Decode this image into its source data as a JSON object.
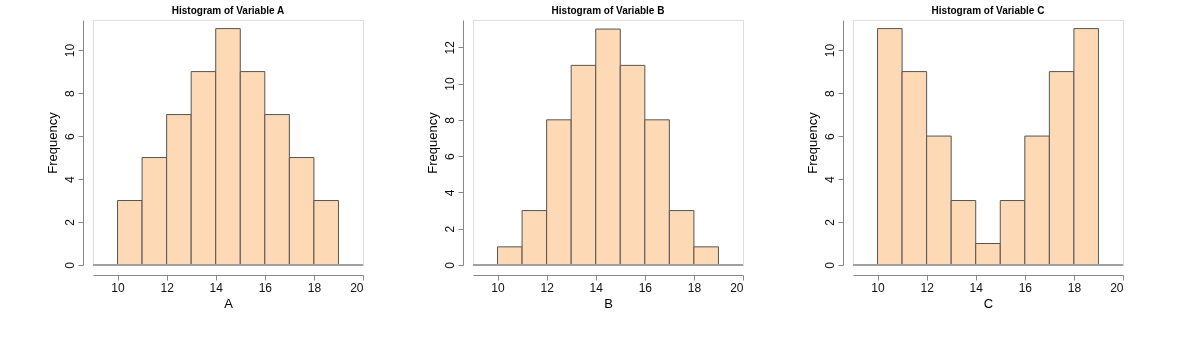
{
  "chart_data": [
    {
      "type": "histogram",
      "title": "Histogram of Variable A",
      "xlabel": "A",
      "ylabel": "Frequency",
      "bins": [
        10,
        11,
        12,
        13,
        14,
        15,
        16,
        17,
        18,
        19
      ],
      "values": [
        3,
        5,
        7,
        9,
        11,
        9,
        7,
        5,
        3
      ],
      "color": "#fdd9b5",
      "xlim": [
        9,
        20
      ],
      "xticks": [
        10,
        12,
        14,
        16,
        18,
        20
      ],
      "ylim": [
        0,
        11.4
      ],
      "yticks": [
        0,
        2,
        4,
        6,
        8,
        10
      ],
      "grid": false,
      "ref_lines": [
        {
          "axis": "y",
          "value": 0,
          "color": "#a0a0a0"
        }
      ]
    },
    {
      "type": "histogram",
      "title": "Histogram of Variable B",
      "xlabel": "B",
      "ylabel": "Frequency",
      "bins": [
        10,
        11,
        12,
        13,
        14,
        15,
        16,
        17,
        18,
        19
      ],
      "values": [
        1,
        3,
        8,
        11,
        13,
        11,
        8,
        3,
        1
      ],
      "color": "#fdd9b5",
      "xlim": [
        9,
        20
      ],
      "xticks": [
        10,
        12,
        14,
        16,
        18,
        20
      ],
      "ylim": [
        0,
        13.5
      ],
      "yticks": [
        0,
        2,
        4,
        6,
        8,
        10,
        12
      ],
      "grid": false,
      "ref_lines": [
        {
          "axis": "y",
          "value": 0,
          "color": "#a0a0a0"
        }
      ]
    },
    {
      "type": "histogram",
      "title": "Histogram of Variable C",
      "xlabel": "C",
      "ylabel": "Frequency",
      "bins": [
        10,
        11,
        12,
        13,
        14,
        15,
        16,
        17,
        18,
        19
      ],
      "values": [
        11,
        9,
        6,
        3,
        1,
        3,
        6,
        9,
        11
      ],
      "color": "#fdd9b5",
      "xlim": [
        9,
        20
      ],
      "xticks": [
        10,
        12,
        14,
        16,
        18,
        20
      ],
      "ylim": [
        0,
        11.4
      ],
      "yticks": [
        0,
        2,
        4,
        6,
        8,
        10
      ],
      "grid": false,
      "ref_lines": [
        {
          "axis": "y",
          "value": 0,
          "color": "#a0a0a0"
        }
      ]
    }
  ]
}
